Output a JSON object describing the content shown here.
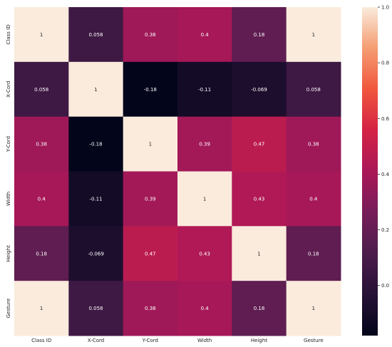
{
  "chart_data": {
    "type": "heatmap",
    "title": "",
    "xlabel": "",
    "ylabel": "",
    "x_categories": [
      "Class ID",
      "X-Cord",
      "Y-Cord",
      "Width",
      "Height",
      "Gesture"
    ],
    "y_categories": [
      "Class ID",
      "X-Cord",
      "Y-Cord",
      "Width",
      "Height",
      "Gesture"
    ],
    "values": [
      [
        1,
        0.058,
        0.38,
        0.4,
        0.18,
        1
      ],
      [
        0.058,
        1,
        -0.18,
        -0.11,
        -0.069,
        0.058
      ],
      [
        0.38,
        -0.18,
        1,
        0.39,
        0.47,
        0.38
      ],
      [
        0.4,
        -0.11,
        0.39,
        1,
        0.43,
        0.4
      ],
      [
        0.18,
        -0.069,
        0.47,
        0.43,
        1,
        0.18
      ],
      [
        1,
        0.058,
        0.38,
        0.4,
        0.18,
        1
      ]
    ],
    "cell_labels": [
      [
        "1",
        "0.058",
        "0.38",
        "0.4",
        "0.18",
        "1"
      ],
      [
        "0.058",
        "1",
        "-0.18",
        "-0.11",
        "-0.069",
        "0.058"
      ],
      [
        "0.38",
        "-0.18",
        "1",
        "0.39",
        "0.47",
        "0.38"
      ],
      [
        "0.4",
        "-0.11",
        "0.39",
        "1",
        "0.43",
        "0.4"
      ],
      [
        "0.18",
        "-0.069",
        "0.47",
        "0.43",
        "1",
        "0.18"
      ],
      [
        "1",
        "0.058",
        "0.38",
        "0.4",
        "0.18",
        "1"
      ]
    ],
    "colorbar": {
      "range": [
        -0.18,
        1.0
      ],
      "ticks": [
        -0.0,
        0.2,
        0.4,
        0.6,
        0.8,
        1.0
      ],
      "tick_labels": [
        "0.0",
        "0.2",
        "0.4",
        "0.6",
        "0.8",
        "1.0"
      ],
      "colormap": "rocket"
    },
    "grid": false
  }
}
